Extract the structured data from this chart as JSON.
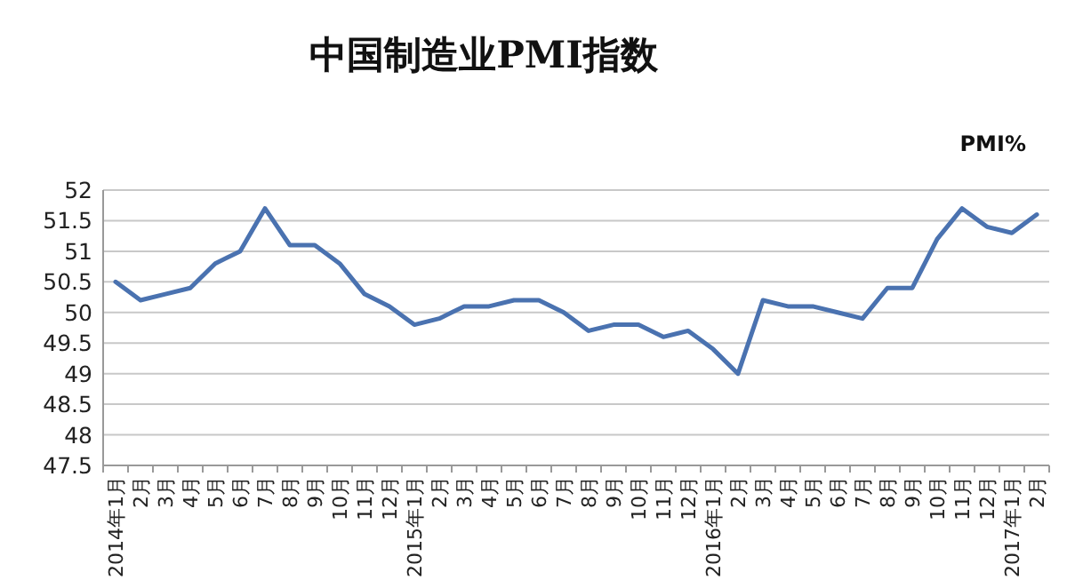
{
  "chart_data": {
    "type": "line",
    "title": "中国制造业PMI指数",
    "ylabel": "PMI%",
    "categories": [
      "2014年1月",
      "2月",
      "3月",
      "4月",
      "5月",
      "6月",
      "7月",
      "8月",
      "9月",
      "10月",
      "11月",
      "12月",
      "2015年1月",
      "2月",
      "3月",
      "4月",
      "5月",
      "6月",
      "7月",
      "8月",
      "9月",
      "10月",
      "11月",
      "12月",
      "2016年1月",
      "2月",
      "3月",
      "4月",
      "5月",
      "6月",
      "7月",
      "8月",
      "9月",
      "10月",
      "11月",
      "12月",
      "2017年1月",
      "2月"
    ],
    "series": [
      {
        "color": "#4a72b0",
        "values": [
          50.5,
          50.2,
          50.3,
          50.4,
          50.8,
          51.0,
          51.7,
          51.1,
          51.1,
          50.8,
          50.3,
          50.1,
          49.8,
          49.9,
          50.1,
          50.1,
          50.2,
          50.2,
          50.0,
          49.7,
          49.8,
          49.8,
          49.6,
          49.7,
          49.4,
          49.0,
          50.2,
          50.1,
          50.1,
          50.0,
          49.9,
          50.4,
          50.4,
          51.2,
          51.7,
          51.4,
          51.3,
          51.6
        ]
      }
    ],
    "ylim": [
      47.5,
      52
    ],
    "yticks": [
      47.5,
      48,
      48.5,
      49,
      49.5,
      50,
      50.5,
      51,
      51.5,
      52
    ],
    "grid": "y",
    "marker": "none",
    "line_style": "solid"
  }
}
